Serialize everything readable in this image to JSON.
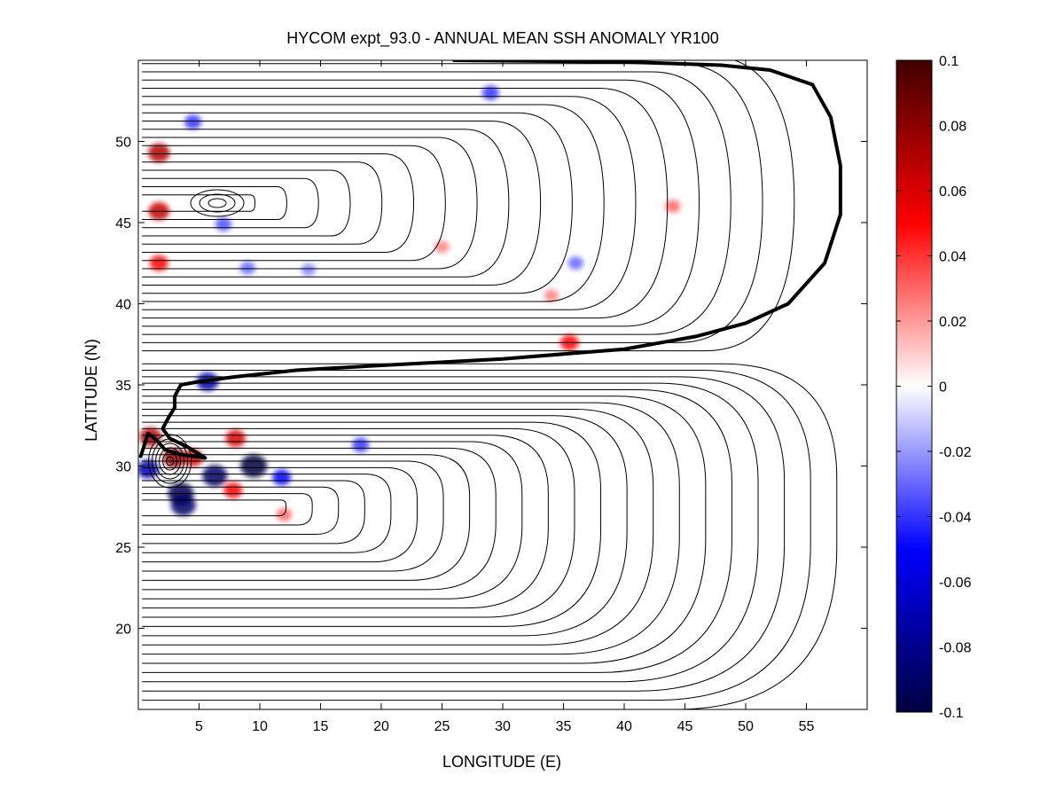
{
  "chart_data": {
    "type": "heatmap",
    "title": "HYCOM expt_93.0 - ANNUAL MEAN SSH ANOMALY YR100",
    "xlabel": "LONGITUDE (E)",
    "ylabel": "LATITUDE (N)",
    "xlim": [
      0,
      60
    ],
    "ylim": [
      15,
      55
    ],
    "xticks": [
      5,
      10,
      15,
      20,
      25,
      30,
      35,
      40,
      45,
      50,
      55
    ],
    "yticks": [
      20,
      25,
      30,
      35,
      40,
      45,
      50
    ],
    "colorbar": {
      "min": -0.1,
      "max": 0.1,
      "ticks": [
        0.1,
        0.08,
        0.06,
        0.04,
        0.02,
        0,
        -0.02,
        -0.04,
        -0.06,
        -0.08,
        -0.1
      ],
      "tick_labels": [
        "0.1",
        "0.08",
        "0.06",
        "0.04",
        "0.02",
        "0",
        "-0.02",
        "-0.04",
        "-0.06",
        "-0.08",
        "-0.1"
      ],
      "colors": [
        "#000040",
        "#0000ff",
        "#ffffff",
        "#ff0000",
        "#400000"
      ]
    },
    "anomalies": [
      {
        "lon": 1.7,
        "lat": 49.3,
        "value": 0.07
      },
      {
        "lon": 1.7,
        "lat": 45.7,
        "value": 0.065
      },
      {
        "lon": 1.7,
        "lat": 42.5,
        "value": 0.05
      },
      {
        "lon": 4.5,
        "lat": 51.2,
        "value": -0.04
      },
      {
        "lon": 7.0,
        "lat": 44.9,
        "value": -0.035
      },
      {
        "lon": 9.0,
        "lat": 42.2,
        "value": -0.03
      },
      {
        "lon": 14.0,
        "lat": 42.1,
        "value": -0.025
      },
      {
        "lon": 5.7,
        "lat": 35.2,
        "value": -0.07
      },
      {
        "lon": 1.0,
        "lat": 31.8,
        "value": 0.07
      },
      {
        "lon": 3.0,
        "lat": 30.5,
        "value": 0.075
      },
      {
        "lon": 4.5,
        "lat": 30.5,
        "value": 0.06
      },
      {
        "lon": 8.0,
        "lat": 31.7,
        "value": 0.06
      },
      {
        "lon": 9.5,
        "lat": 30.0,
        "value": -0.1
      },
      {
        "lon": 6.3,
        "lat": 29.4,
        "value": -0.09
      },
      {
        "lon": 3.5,
        "lat": 28.3,
        "value": -0.095
      },
      {
        "lon": 3.7,
        "lat": 27.6,
        "value": -0.09
      },
      {
        "lon": 11.8,
        "lat": 29.3,
        "value": -0.05
      },
      {
        "lon": 0.8,
        "lat": 29.8,
        "value": -0.07
      },
      {
        "lon": 7.8,
        "lat": 28.5,
        "value": 0.05
      },
      {
        "lon": 35.5,
        "lat": 37.6,
        "value": 0.05
      },
      {
        "lon": 18.3,
        "lat": 31.3,
        "value": -0.04
      },
      {
        "lon": 29.0,
        "lat": 53.0,
        "value": -0.04
      },
      {
        "lon": 34.0,
        "lat": 40.5,
        "value": 0.025
      },
      {
        "lon": 36.0,
        "lat": 42.5,
        "value": -0.03
      },
      {
        "lon": 44.0,
        "lat": 46.0,
        "value": 0.03
      },
      {
        "lon": 25.0,
        "lat": 43.5,
        "value": 0.025
      },
      {
        "lon": 12.0,
        "lat": 27.0,
        "value": 0.03
      }
    ],
    "reference_contour": [
      [
        0.2,
        30.6
      ],
      [
        0.8,
        32.0
      ],
      [
        1.5,
        31.6
      ],
      [
        2.2,
        31.0
      ],
      [
        3.5,
        30.7
      ],
      [
        5.5,
        30.5
      ],
      [
        4.0,
        31.2
      ],
      [
        2.6,
        31.7
      ],
      [
        2.0,
        32.3
      ],
      [
        2.5,
        33.0
      ],
      [
        3.0,
        33.6
      ],
      [
        3.0,
        34.3
      ],
      [
        3.5,
        35.0
      ],
      [
        5.0,
        35.2
      ],
      [
        8.0,
        35.5
      ],
      [
        13.0,
        35.9
      ],
      [
        20.0,
        36.2
      ],
      [
        30.0,
        36.6
      ],
      [
        40.0,
        37.2
      ],
      [
        46.0,
        38.0
      ],
      [
        50.0,
        38.8
      ],
      [
        53.5,
        40.0
      ],
      [
        56.5,
        42.5
      ],
      [
        57.8,
        45.5
      ],
      [
        57.8,
        48.5
      ],
      [
        57.0,
        51.5
      ],
      [
        55.5,
        53.5
      ],
      [
        52.0,
        54.4
      ],
      [
        48.0,
        54.7
      ],
      [
        40.0,
        54.9
      ],
      [
        26.0,
        55.0
      ]
    ]
  }
}
